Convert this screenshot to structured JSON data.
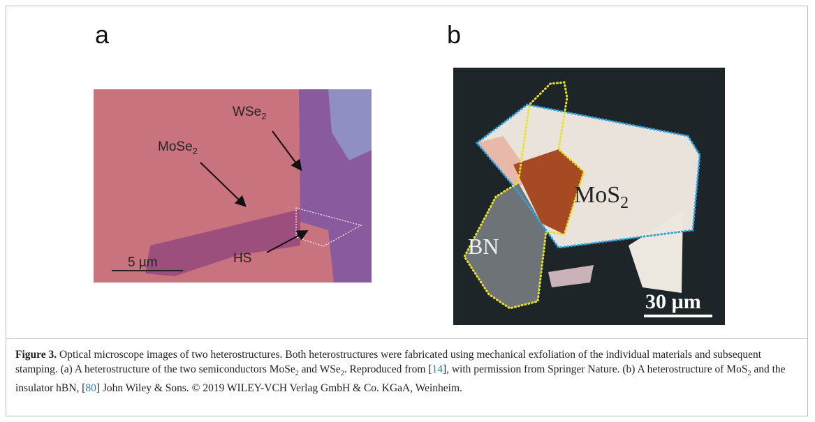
{
  "panels": [
    {
      "letter": "a",
      "labels": {
        "wse2": {
          "text": "WSe",
          "sub": "2"
        },
        "mose2": {
          "text": "MoSe",
          "sub": "2"
        },
        "hs": "HS",
        "scale": "5 µm"
      }
    },
    {
      "letter": "b",
      "labels": {
        "mos2": {
          "text": "MoS",
          "sub": "2"
        },
        "bn": "BN",
        "scale": "30 µm"
      }
    }
  ],
  "caption": {
    "runs": [
      "Figure 3.",
      " Optical microscope images of two heterostructures. Both heterostructures were fabricated using mechanical exfoliation of the individual materials and subsequent stamping. (a) A heterostructure of the two semiconductors MoSe",
      "2",
      " and WSe",
      "2",
      ". Reproduced from [",
      "14",
      "], with permission from Springer Nature. (b) A heterostructure of MoS",
      "2",
      " and the insulator hBN, [",
      "80",
      "] John Wiley & Sons. © 2019 WILEY-VCH Verlag GmbH & Co. KGaA, Weinheim."
    ]
  }
}
